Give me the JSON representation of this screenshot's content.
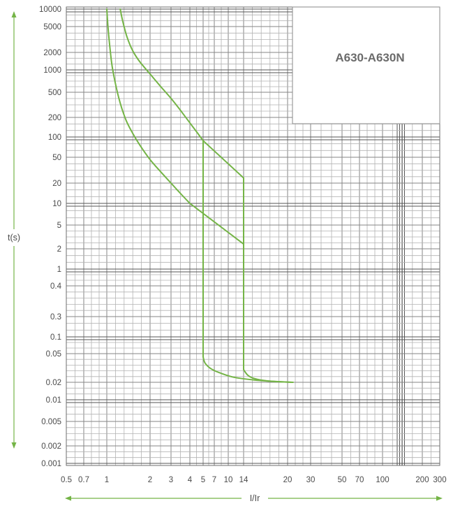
{
  "chart_data": {
    "type": "line",
    "title": "A630-A630N",
    "title_placement": "top-right box",
    "xlabel": "I/Ir",
    "ylabel": "t(s)",
    "x_scale": "log",
    "y_scale": "log",
    "xlim": [
      0.5,
      300
    ],
    "ylim": [
      0.001,
      10000
    ],
    "x_ticks": [
      0.5,
      0.7,
      1,
      2,
      3,
      4,
      5,
      7,
      10,
      14,
      20,
      30,
      50,
      70,
      100,
      200,
      300
    ],
    "y_ticks": [
      10000,
      5000,
      2000,
      1000,
      500,
      200,
      100,
      50,
      20,
      10,
      5,
      2,
      1,
      0.4,
      0.3,
      0.1,
      0.05,
      0.02,
      0.01,
      0.005,
      0.002,
      0.001
    ],
    "grid": true,
    "legend": false,
    "colors": {
      "curve": "#74b446",
      "axis_arrow": "#74b446",
      "title_text": "#6b6b6b",
      "title_box_border": "#8a8a8a"
    },
    "series": [
      {
        "segments": [
          [
            [
              1.24,
              10000
            ],
            [
              1.29,
              6200
            ],
            [
              1.38,
              3500
            ],
            [
              1.51,
              2150
            ],
            [
              1.69,
              1400
            ],
            [
              2,
              880
            ],
            [
              2.45,
              600
            ],
            [
              3,
              400
            ],
            [
              3.44,
              265
            ],
            [
              4,
              165
            ],
            [
              4.55,
              115
            ],
            [
              5,
              88
            ]
          ],
          [
            [
              5,
              88
            ],
            [
              14,
              24
            ]
          ],
          [
            [
              14,
              24
            ],
            [
              14,
              0.03
            ]
          ],
          [
            [
              14,
              0.03
            ],
            [
              14.5,
              0.025
            ],
            [
              15.3,
              0.0225
            ],
            [
              17.2,
              0.0208
            ],
            [
              22,
              0.02
            ]
          ]
        ]
      },
      {
        "segments": [
          [
            [
              1,
              10000
            ],
            [
              1.02,
              4800
            ],
            [
              1.06,
              2000
            ],
            [
              1.1,
              1000
            ],
            [
              1.21,
              410
            ],
            [
              1.35,
              190
            ],
            [
              1.51,
              115
            ],
            [
              1.69,
              77
            ],
            [
              2,
              46
            ],
            [
              2.45,
              30
            ],
            [
              3,
              20
            ],
            [
              3.44,
              14.3
            ],
            [
              4,
              10
            ]
          ],
          [
            [
              4,
              10
            ],
            [
              14,
              2.4
            ]
          ],
          [
            [
              5,
              88
            ],
            [
              5,
              0.045
            ]
          ],
          [
            [
              5,
              0.045
            ],
            [
              5.3,
              0.037
            ],
            [
              6.3,
              0.031
            ],
            [
              8.1,
              0.027
            ],
            [
              11.3,
              0.0235
            ],
            [
              15.3,
              0.0215
            ],
            [
              18.2,
              0.0205
            ],
            [
              22,
              0.02
            ]
          ]
        ]
      }
    ]
  }
}
